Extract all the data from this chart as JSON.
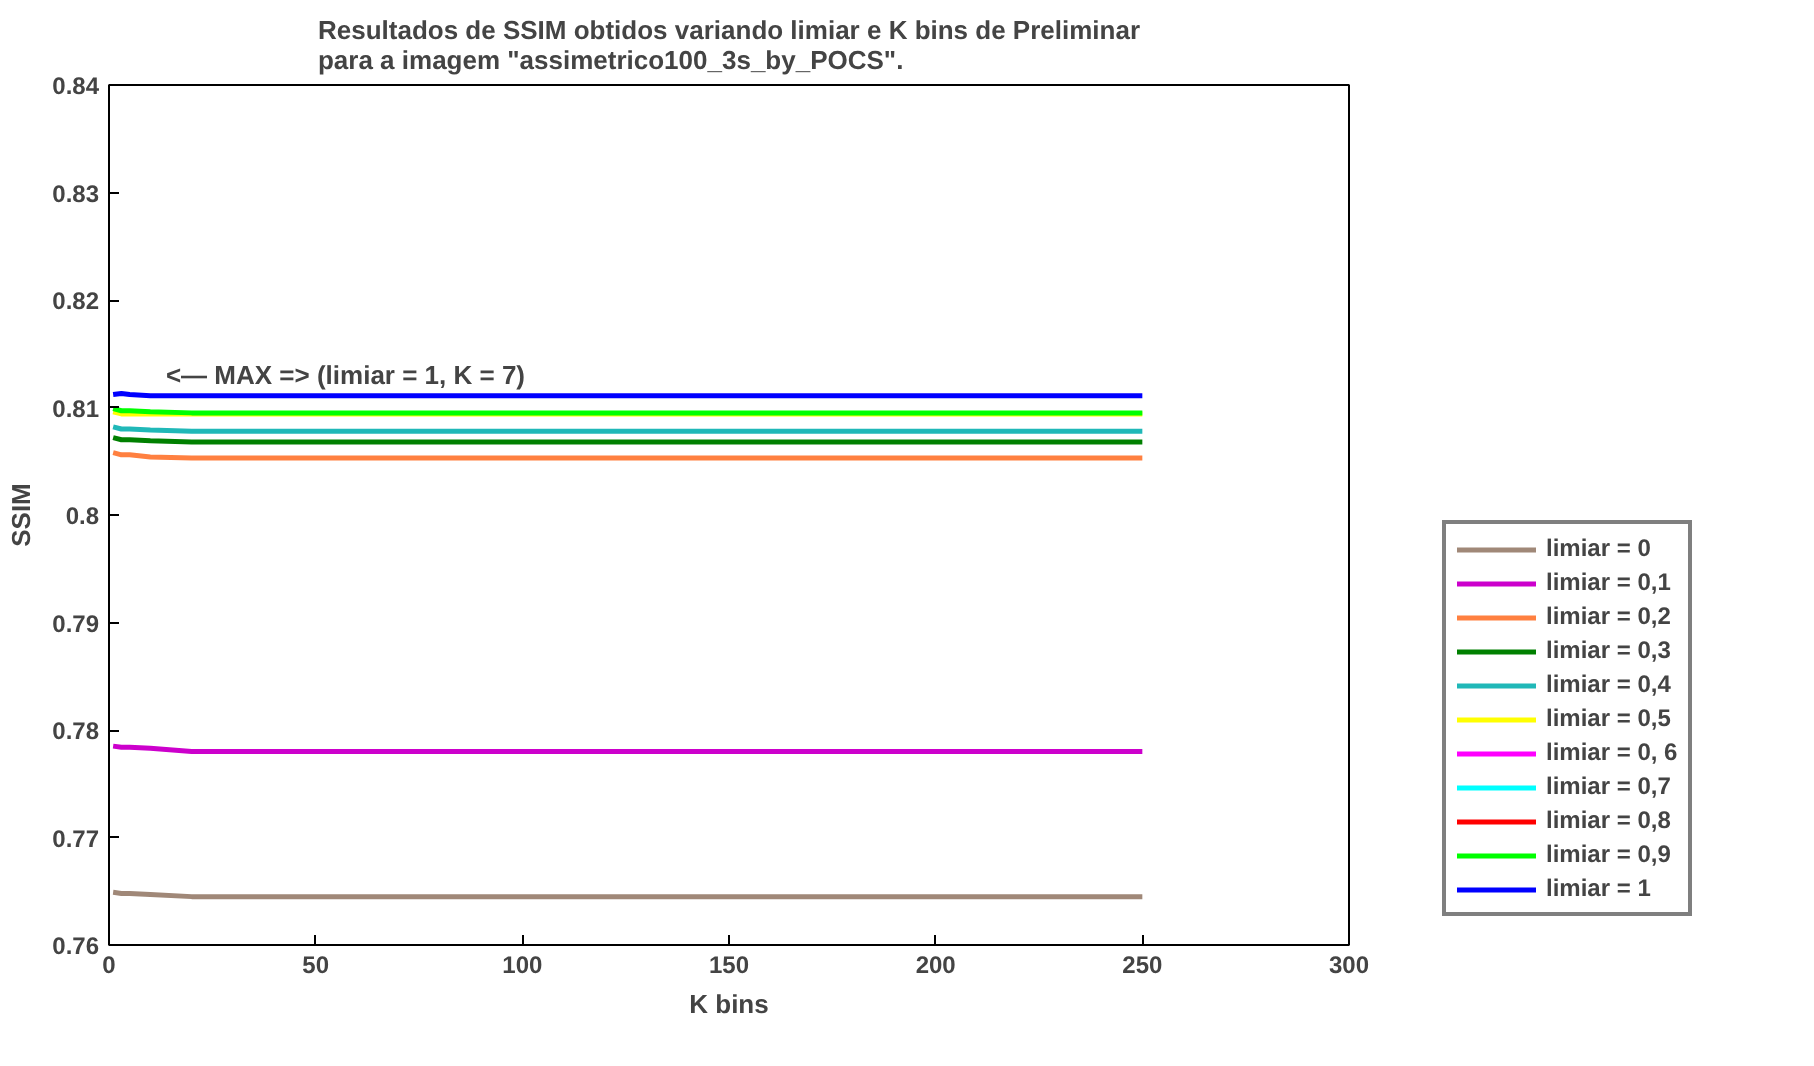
{
  "chart_data": {
    "type": "line",
    "title": "Resultados de SSIM obtidos variando limiar e K bins de Preliminar\npara a imagem \"assimetrico100_3s_by_POCS\".",
    "xlabel": "K bins",
    "ylabel": "SSIM",
    "x": [
      1,
      3,
      5,
      10,
      20,
      50,
      100,
      150,
      200,
      250
    ],
    "series": [
      {
        "name": "limiar = 0",
        "color": "#a08878",
        "values": [
          0.7649,
          0.7648,
          0.7648,
          0.7647,
          0.7645,
          0.7645,
          0.7645,
          0.7645,
          0.7645,
          0.7645
        ]
      },
      {
        "name": "limiar = 0,1",
        "color": "#cc00cc",
        "values": [
          0.7785,
          0.7784,
          0.7784,
          0.7783,
          0.778,
          0.778,
          0.778,
          0.778,
          0.778,
          0.778
        ]
      },
      {
        "name": "limiar = 0,2",
        "color": "#ff8040",
        "values": [
          0.8058,
          0.8056,
          0.8056,
          0.8054,
          0.8053,
          0.8053,
          0.8053,
          0.8053,
          0.8053,
          0.8053
        ]
      },
      {
        "name": "limiar = 0,3",
        "color": "#008000",
        "values": [
          0.8072,
          0.807,
          0.807,
          0.8069,
          0.8068,
          0.8068,
          0.8068,
          0.8068,
          0.8068,
          0.8068
        ]
      },
      {
        "name": "limiar = 0,4",
        "color": "#20b8b8",
        "values": [
          0.8082,
          0.808,
          0.808,
          0.8079,
          0.8078,
          0.8078,
          0.8078,
          0.8078,
          0.8078,
          0.8078
        ]
      },
      {
        "name": "limiar = 0,5",
        "color": "#ffff00",
        "values": [
          0.8096,
          0.8094,
          0.8094,
          0.8094,
          0.8094,
          0.8094,
          0.8094,
          0.8094,
          0.8094,
          0.8094
        ]
      },
      {
        "name": "limiar = 0, 6",
        "color": "#ff00ff",
        "values": [
          null,
          null,
          null,
          null,
          null,
          null,
          null,
          null,
          null,
          null
        ]
      },
      {
        "name": "limiar = 0,7",
        "color": "#00ffff",
        "values": [
          null,
          null,
          null,
          null,
          null,
          null,
          null,
          null,
          null,
          null
        ]
      },
      {
        "name": "limiar = 0,8",
        "color": "#ff0000",
        "values": [
          null,
          null,
          null,
          null,
          null,
          null,
          null,
          null,
          null,
          null
        ]
      },
      {
        "name": "limiar = 0,9",
        "color": "#00ff00",
        "values": [
          0.8099,
          0.8097,
          0.8097,
          0.8096,
          0.8095,
          0.8095,
          0.8095,
          0.8095,
          0.8095,
          0.8095
        ]
      },
      {
        "name": "limiar = 1",
        "color": "#0000ff",
        "values": [
          0.8112,
          0.8113,
          0.8112,
          0.8111,
          0.8111,
          0.8111,
          0.8111,
          0.8111,
          0.8111,
          0.8111
        ]
      }
    ],
    "xlim": [
      0,
      300
    ],
    "ylim": [
      0.76,
      0.84
    ],
    "xticks": [
      0,
      50,
      100,
      150,
      200,
      250,
      300
    ],
    "yticks": [
      0.76,
      0.77,
      0.78,
      0.79,
      0.8,
      0.81,
      0.82,
      0.83,
      0.84
    ],
    "annotations": [
      {
        "text": "<— MAX => (limiar = 1, K = 7)",
        "x": 7,
        "y": 0.8111
      }
    ],
    "grid": false,
    "legend": "right",
    "marker": "none",
    "line_style": "solid"
  }
}
